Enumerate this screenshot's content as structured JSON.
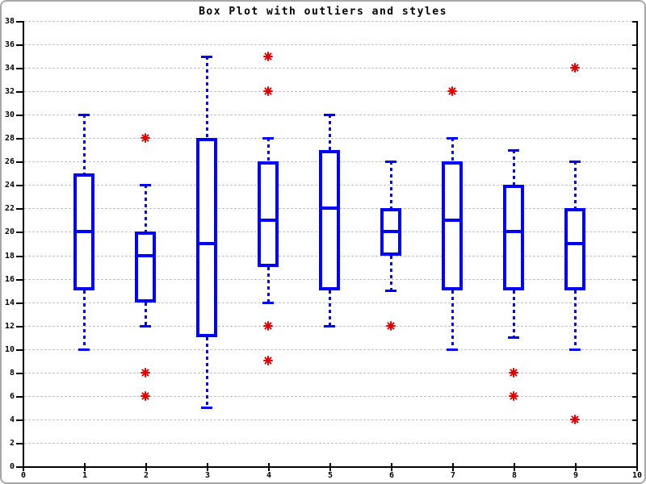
{
  "window": {
    "background": "#ffffff",
    "frame_border_color": "#a8a8a8"
  },
  "chart_data": {
    "type": "boxplot",
    "title": "Box Plot with outliers and styles",
    "xlabel": "",
    "ylabel": "",
    "x_axis": {
      "min": 0,
      "max": 10,
      "tick_step": 1,
      "tick_labels": [
        "0",
        "1",
        "2",
        "3",
        "4",
        "5",
        "6",
        "7",
        "8",
        "9",
        "10"
      ]
    },
    "y_axis": {
      "min": 0,
      "max": 38,
      "tick_step": 2,
      "tick_labels": [
        "0",
        "2",
        "4",
        "6",
        "8",
        "10",
        "12",
        "14",
        "16",
        "18",
        "20",
        "22",
        "24",
        "26",
        "28",
        "30",
        "32",
        "34",
        "36",
        "38"
      ]
    },
    "grid": {
      "horizontal": true,
      "vertical": false,
      "style": "dashed"
    },
    "legend": "none",
    "colors": {
      "box": "#0000ff",
      "outlier": "#e00000",
      "grid": "#c3c3c3",
      "axis": "#000000",
      "title": "#000000"
    },
    "boxes": [
      {
        "x": 1,
        "whisker_low": 10,
        "q1": 15,
        "median": 20,
        "q3": 25,
        "whisker_high": 30,
        "outliers": []
      },
      {
        "x": 2,
        "whisker_low": 12,
        "q1": 14,
        "median": 18,
        "q3": 20,
        "whisker_high": 24,
        "outliers": [
          28,
          8,
          6
        ]
      },
      {
        "x": 3,
        "whisker_low": 5,
        "q1": 11,
        "median": 19,
        "q3": 28,
        "whisker_high": 35,
        "outliers": []
      },
      {
        "x": 4,
        "whisker_low": 14,
        "q1": 17,
        "median": 21,
        "q3": 26,
        "whisker_high": 28,
        "outliers": [
          35,
          32,
          12,
          9
        ]
      },
      {
        "x": 5,
        "whisker_low": 12,
        "q1": 15,
        "median": 22,
        "q3": 27,
        "whisker_high": 30,
        "outliers": []
      },
      {
        "x": 6,
        "whisker_low": 15,
        "q1": 18,
        "median": 20,
        "q3": 22,
        "whisker_high": 26,
        "outliers": [
          12
        ]
      },
      {
        "x": 7,
        "whisker_low": 10,
        "q1": 15,
        "median": 21,
        "q3": 26,
        "whisker_high": 28,
        "outliers": [
          32
        ]
      },
      {
        "x": 8,
        "whisker_low": 11,
        "q1": 15,
        "median": 20,
        "q3": 24,
        "whisker_high": 27,
        "outliers": [
          8,
          6
        ]
      },
      {
        "x": 9,
        "whisker_low": 10,
        "q1": 15,
        "median": 19,
        "q3": 22,
        "whisker_high": 26,
        "outliers": [
          34,
          4
        ]
      }
    ]
  }
}
